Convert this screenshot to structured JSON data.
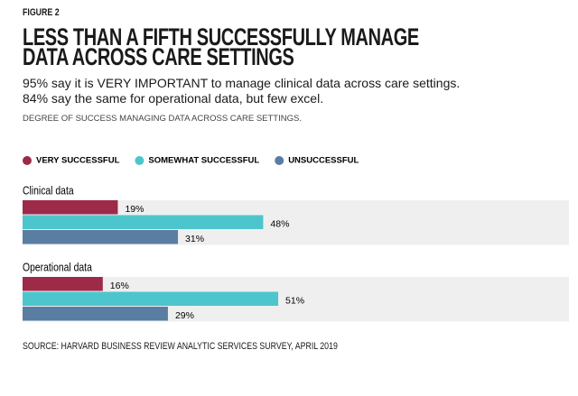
{
  "figure_label": "FIGURE 2",
  "chart_data": {
    "type": "bar",
    "orientation": "horizontal",
    "title": "LESS THAN A FIFTH SUCCESSFULLY MANAGE DATA ACROSS CARE SETTINGS",
    "subtitle": "95% say it is VERY IMPORTANT to manage clinical data across care settings. 84% say the same for operational data, but few excel.",
    "note": "DEGREE OF SUCCESS MANAGING DATA ACROSS CARE SETTINGS.",
    "categories": [
      "Clinical data",
      "Operational data"
    ],
    "series": [
      {
        "name": "VERY SUCCESSFUL",
        "color": "#9c2a48",
        "values": [
          19,
          16
        ],
        "value_labels": [
          "19%",
          "16%"
        ]
      },
      {
        "name": "SOMEWHAT SUCCESSFUL",
        "color": "#4cc6cc",
        "values": [
          48,
          51
        ],
        "value_labels": [
          "48%",
          "51%"
        ]
      },
      {
        "name": "UNSUCCESSFUL",
        "color": "#5a7ea2",
        "values": [
          31,
          29
        ],
        "value_labels": [
          "31%",
          "29%"
        ]
      }
    ],
    "source": "SOURCE: HARVARD BUSINESS REVIEW ANALYTIC SERVICES SURVEY, APRIL 2019"
  }
}
